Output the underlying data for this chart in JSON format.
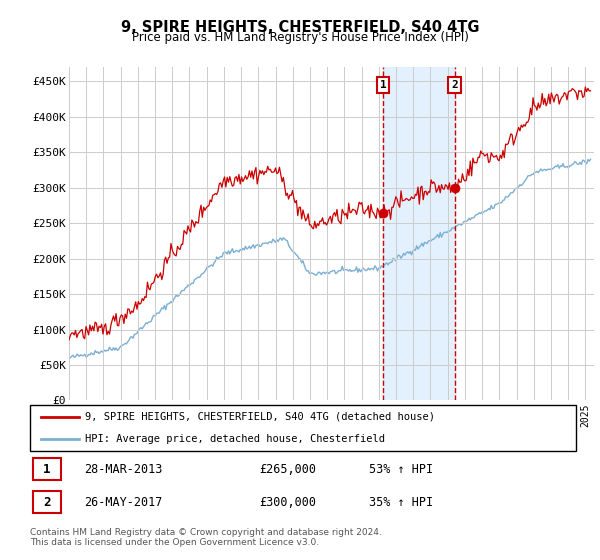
{
  "title": "9, SPIRE HEIGHTS, CHESTERFIELD, S40 4TG",
  "subtitle": "Price paid vs. HM Land Registry's House Price Index (HPI)",
  "ylabel_ticks": [
    "£0",
    "£50K",
    "£100K",
    "£150K",
    "£200K",
    "£250K",
    "£300K",
    "£350K",
    "£400K",
    "£450K"
  ],
  "ytick_values": [
    0,
    50000,
    100000,
    150000,
    200000,
    250000,
    300000,
    350000,
    400000,
    450000
  ],
  "ylim": [
    0,
    470000
  ],
  "xlim_start": 1995.0,
  "xlim_end": 2025.5,
  "marker1_date": 2013.24,
  "marker2_date": 2017.4,
  "marker1_price": 265000,
  "marker2_price": 300000,
  "legend_line1": "9, SPIRE HEIGHTS, CHESTERFIELD, S40 4TG (detached house)",
  "legend_line2": "HPI: Average price, detached house, Chesterfield",
  "table_row1": [
    "1",
    "28-MAR-2013",
    "£265,000",
    "53% ↑ HPI"
  ],
  "table_row2": [
    "2",
    "26-MAY-2017",
    "£300,000",
    "35% ↑ HPI"
  ],
  "footnote": "Contains HM Land Registry data © Crown copyright and database right 2024.\nThis data is licensed under the Open Government Licence v3.0.",
  "color_red": "#cc0000",
  "color_blue": "#7bafd4",
  "color_shading": "#ddeeff",
  "color_grid": "#cccccc",
  "color_dashed": "#cc0000"
}
